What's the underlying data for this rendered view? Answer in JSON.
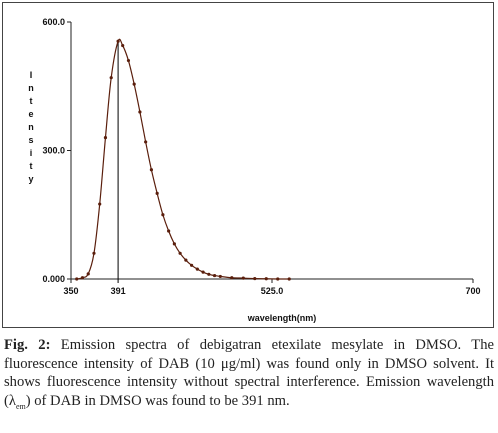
{
  "chart_data": {
    "type": "line",
    "title": "",
    "xlabel": "wavelength(nm)",
    "ylabel": "Intensity",
    "xlim": [
      350,
      700
    ],
    "ylim": [
      0,
      600
    ],
    "x_ticks": [
      "350",
      "525.0",
      "700"
    ],
    "y_ticks": [
      "0.000",
      "300.0",
      "600.0"
    ],
    "annotations": [
      {
        "x": 391,
        "label": "391"
      }
    ],
    "grid": false,
    "series": [
      {
        "name": "",
        "x": [
          355,
          360,
          365,
          370,
          375,
          380,
          385,
          391,
          395,
          400,
          405,
          410,
          415,
          420,
          425,
          430,
          435,
          440,
          445,
          450,
          455,
          460,
          465,
          470,
          475,
          480,
          490,
          500,
          510,
          520,
          530,
          540
        ],
        "values": [
          0,
          3,
          12,
          60,
          175,
          330,
          470,
          555,
          545,
          510,
          455,
          390,
          320,
          255,
          200,
          150,
          112,
          82,
          60,
          44,
          32,
          23,
          16,
          11,
          8,
          6,
          3,
          2,
          1,
          0.5,
          0,
          0
        ]
      }
    ],
    "colors": {
      "curve": "#5a1e0c",
      "line": "#000000"
    }
  },
  "caption": {
    "fig_label": "Fig. 2:",
    "text_1": " Emission spectra of debigatran etexilate mesylate in DMSO. The fluorescence intensity of DAB (10 μg/ml) was found only in DMSO solvent. It shows fluorescence intensity without spectral interference. Emission wavelength (λ",
    "subscript": "em",
    "text_2": ") of DAB in DMSO was found to be 391 nm."
  }
}
